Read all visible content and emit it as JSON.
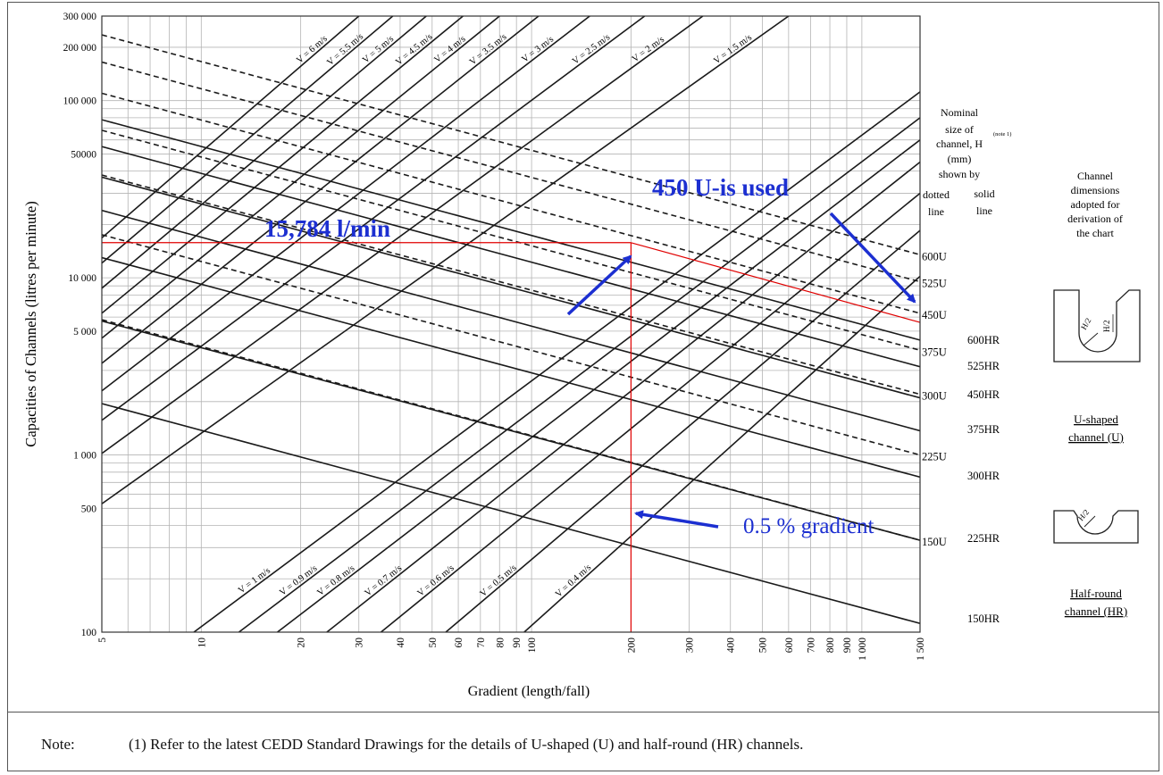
{
  "chart_data": {
    "type": "line",
    "title": "",
    "xlabel": "Gradient (length/fall)",
    "ylabel": "Capacities of Channels (litres per minute)",
    "xscale": "log",
    "yscale": "log",
    "xlim": [
      5,
      1500
    ],
    "ylim": [
      100,
      300000
    ],
    "grid": true,
    "x_ticks": [
      "5",
      "10",
      "20",
      "30",
      "40",
      "50",
      "60",
      "70",
      "80",
      "90",
      "100",
      "200",
      "300",
      "400",
      "500",
      "600",
      "700",
      "800",
      "900",
      "1 000",
      "1 500"
    ],
    "x_tick_values": [
      5,
      10,
      20,
      30,
      40,
      50,
      60,
      70,
      80,
      90,
      100,
      200,
      300,
      400,
      500,
      600,
      700,
      800,
      900,
      1000,
      1500
    ],
    "y_ticks": [
      "100",
      "500",
      "1 000",
      "5 000",
      "10 000",
      "50000",
      "100 000",
      "200 000",
      "300 000"
    ],
    "y_tick_values": [
      100,
      500,
      1000,
      5000,
      10000,
      50000,
      100000,
      200000,
      300000
    ],
    "velocity_series": [
      {
        "name": "V = 6 m/s",
        "x": [
          5,
          30
        ],
        "y": [
          16800,
          300000
        ]
      },
      {
        "name": "V = 5.5 m/s",
        "x": [
          5,
          38
        ],
        "y": [
          12100,
          300000
        ]
      },
      {
        "name": "V = 5 m/s",
        "x": [
          5,
          48
        ],
        "y": [
          8730,
          300000
        ]
      },
      {
        "name": "V = 4.5 m/s",
        "x": [
          5,
          62
        ],
        "y": [
          6310,
          300000
        ]
      },
      {
        "name": "V = 4 m/s",
        "x": [
          5,
          80
        ],
        "y": [
          4560,
          300000
        ]
      },
      {
        "name": "V = 3.5 m/s",
        "x": [
          5,
          105
        ],
        "y": [
          3290,
          300000
        ]
      },
      {
        "name": "V = 3 m/s",
        "x": [
          5,
          150
        ],
        "y": [
          2300,
          300000
        ]
      },
      {
        "name": "V = 2.5 m/s",
        "x": [
          5,
          220
        ],
        "y": [
          1570,
          300000
        ]
      },
      {
        "name": "V = 2 m/s",
        "x": [
          5,
          330
        ],
        "y": [
          1020,
          300000
        ]
      },
      {
        "name": "V = 1.5 m/s",
        "x": [
          5,
          600
        ],
        "y": [
          530,
          300000
        ]
      },
      {
        "name": "V = 1 m/s",
        "x": [
          9.5,
          1500
        ],
        "y": [
          100,
          112000
        ]
      },
      {
        "name": "V = 0.9 m/s",
        "x": [
          13,
          1500
        ],
        "y": [
          100,
          80000
        ]
      },
      {
        "name": "V = 0.8 m/s",
        "x": [
          17,
          1500
        ],
        "y": [
          100,
          60000
        ]
      },
      {
        "name": "V = 0.7 m/s",
        "x": [
          24,
          1500
        ],
        "y": [
          100,
          45000
        ]
      },
      {
        "name": "V = 0.6 m/s",
        "x": [
          35,
          1500
        ],
        "y": [
          100,
          30000
        ]
      },
      {
        "name": "V = 0.5 m/s",
        "x": [
          55,
          1500
        ],
        "y": [
          100,
          18500
        ]
      },
      {
        "name": "V = 0.4 m/s",
        "x": [
          95,
          1500
        ],
        "y": [
          100,
          10200
        ]
      }
    ],
    "size_series": [
      {
        "name": "600U",
        "style": "dotted",
        "x": [
          5,
          1500
        ],
        "y": [
          235000,
          13500
        ]
      },
      {
        "name": "525U",
        "style": "dotted",
        "x": [
          5,
          1500
        ],
        "y": [
          165000,
          9500
        ]
      },
      {
        "name": "450U",
        "style": "dotted",
        "x": [
          5,
          1500
        ],
        "y": [
          110000,
          6300
        ]
      },
      {
        "name": "375U",
        "style": "dotted",
        "x": [
          5,
          1500
        ],
        "y": [
          68000,
          3900
        ]
      },
      {
        "name": "300U",
        "style": "dotted",
        "x": [
          5,
          1500
        ],
        "y": [
          38000,
          2200
        ]
      },
      {
        "name": "225U",
        "style": "dotted",
        "x": [
          5,
          1500
        ],
        "y": [
          17500,
          1000
        ]
      },
      {
        "name": "150U",
        "style": "dotted",
        "x": [
          5,
          1500
        ],
        "y": [
          5800,
          330
        ]
      },
      {
        "name": "600HR",
        "style": "solid",
        "x": [
          5,
          1500
        ],
        "y": [
          78000,
          4450
        ]
      },
      {
        "name": "525HR",
        "style": "solid",
        "x": [
          5,
          1500
        ],
        "y": [
          55000,
          3150
        ]
      },
      {
        "name": "450HR",
        "style": "solid",
        "x": [
          5,
          1500
        ],
        "y": [
          37000,
          2100
        ]
      },
      {
        "name": "375HR",
        "style": "solid",
        "x": [
          5,
          1500
        ],
        "y": [
          24000,
          1370
        ]
      },
      {
        "name": "300HR",
        "style": "solid",
        "x": [
          5,
          1500
        ],
        "y": [
          13000,
          750
        ]
      },
      {
        "name": "225HR",
        "style": "solid",
        "x": [
          5,
          1500
        ],
        "y": [
          5700,
          330
        ]
      },
      {
        "name": "150HR",
        "style": "solid",
        "x": [
          5,
          1500
        ],
        "y": [
          1950,
          112
        ]
      }
    ],
    "annotations": {
      "flow_label": "15,784 l/min",
      "flow_value": 15784,
      "gradient_label": "0.5 % gradient",
      "gradient_value": 200,
      "section_label": "450 U-is used"
    },
    "legend": {
      "heading": [
        "Nominal",
        "size of",
        "channel, H",
        "(mm)",
        "shown by"
      ],
      "note_ref": "(note 1)",
      "dotted_caption": [
        "dotted",
        "line"
      ],
      "solid_caption": [
        "solid",
        "line"
      ],
      "u_labels": [
        "600U",
        "525U",
        "450U",
        "375U",
        "300U",
        "225U",
        "150U"
      ],
      "hr_labels": [
        "600HR",
        "525HR",
        "450HR",
        "375HR",
        "300HR",
        "225HR",
        "150HR"
      ]
    },
    "side_panel": {
      "caption": [
        "Channel",
        "dimensions",
        "adopted for",
        "derivation of",
        "the chart"
      ],
      "u_caption": [
        "U-shaped",
        "channel (U)"
      ],
      "hr_caption": [
        "Half-round",
        "channel (HR)"
      ],
      "h2_label": "H/2"
    },
    "colors": {
      "grid": "#b4b4b4",
      "curve": "#1a1a1a",
      "guide_line": "#e00000",
      "annotation": "#1c2fd1"
    }
  },
  "note": {
    "label": "Note:",
    "text": "(1)  Refer to the latest CEDD Standard Drawings for the details of U-shaped (U) and half-round (HR) channels."
  }
}
